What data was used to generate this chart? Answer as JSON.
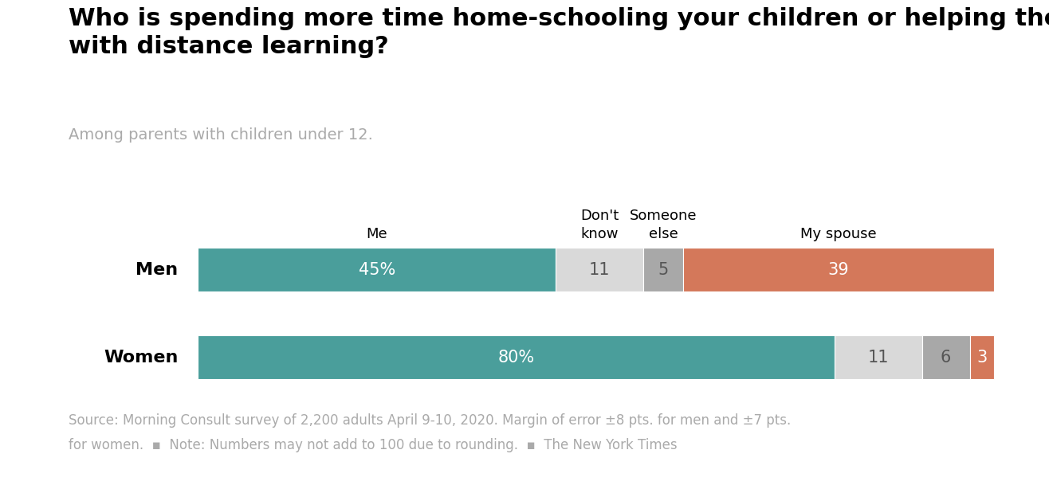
{
  "title": "Who is spending more time home-schooling your children or helping them\nwith distance learning?",
  "subtitle": "Among parents with children under 12.",
  "rows": [
    "Men",
    "Women"
  ],
  "segments": {
    "Men": [
      45,
      11,
      5,
      39
    ],
    "Women": [
      80,
      11,
      6,
      3
    ]
  },
  "segment_labels": {
    "Men": [
      "45%",
      "11",
      "5",
      "39"
    ],
    "Women": [
      "80%",
      "11",
      "6",
      "3"
    ]
  },
  "colors": [
    "#4a9e9b",
    "#d9d9d9",
    "#a8a8a8",
    "#d4785a"
  ],
  "col_headers": [
    "Me",
    "Don't\nknow",
    "Someone\nelse",
    "My spouse"
  ],
  "footnote_line1": "Source: Morning Consult survey of 2,200 adults April 9-10, 2020. Margin of error ±8 pts. for men and ±7 pts.",
  "footnote_line2": "for women.  ▪  Note: Numbers may not add to 100 due to rounding.  ▪  The New York Times",
  "background_color": "#ffffff",
  "bar_height": 0.5,
  "label_fontsize": 15,
  "row_label_fontsize": 16,
  "header_fontsize": 13,
  "title_fontsize": 22,
  "subtitle_fontsize": 14,
  "footnote_fontsize": 12
}
